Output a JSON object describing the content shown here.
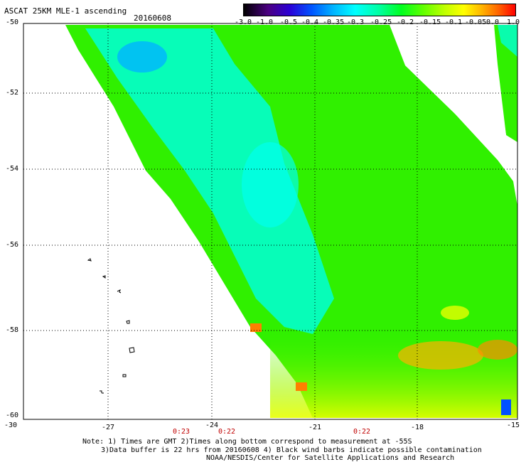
{
  "header": {
    "title": "ASCAT 25KM MLE-1 ascending",
    "date": "20160608"
  },
  "colorbar": {
    "labels": [
      "-3.0",
      "-1.0",
      "-0.5",
      "-0.4",
      "-0.35",
      "-0.3",
      "-0.25",
      "-0.2",
      "-0.15",
      "-0.1",
      "-0.05",
      "0.0",
      "1.0"
    ],
    "colors": [
      "#000000",
      "#4b0082",
      "#0000ff",
      "#00c0ff",
      "#00ffff",
      "#00ff00",
      "#ffff00",
      "#ff8000",
      "#ff0000"
    ]
  },
  "map": {
    "lat_labels": [
      "-50",
      "-52",
      "-54",
      "-56",
      "-58",
      "-60"
    ],
    "lon_labels": [
      "-30",
      "-27",
      "-24",
      "-21",
      "-18",
      "-15"
    ],
    "time_labels": [
      "0:23",
      "0:22",
      "0:22"
    ],
    "swath_colors": {
      "green": "#30f000",
      "cyan": "#00ffee",
      "yellow": "#e8ff00",
      "orange": "#ffa000",
      "blue": "#00a0ff"
    }
  },
  "footer": {
    "line1": "Note: 1) Times are GMT 2)Times along bottom correspond to measurement at -55S",
    "line2": "3)Data buffer is 22 hrs from 20160608 4) Black wind barbs indicate possible contamination",
    "line3": "NOAA/NESDIS/Center for Satellite Applications and Research"
  }
}
